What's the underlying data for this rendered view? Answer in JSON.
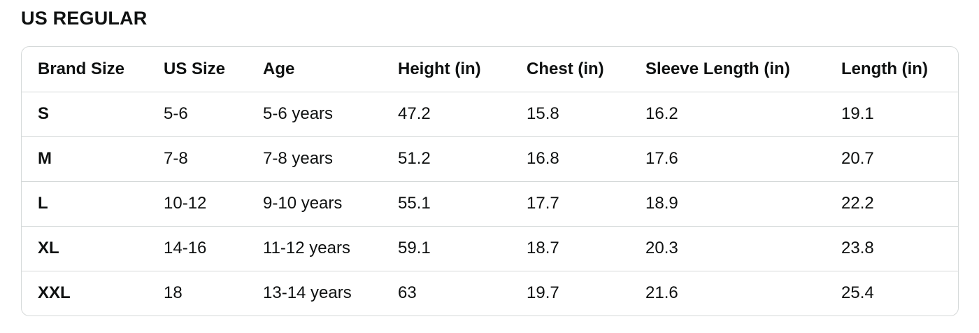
{
  "page": {
    "title": "US REGULAR"
  },
  "table": {
    "columns": [
      "Brand Size",
      "US Size",
      "Age",
      "Height (in)",
      "Chest (in)",
      "Sleeve Length (in)",
      "Length (in)"
    ],
    "rows": [
      [
        "S",
        "5-6",
        "5-6 years",
        "47.2",
        "15.8",
        "16.2",
        "19.1"
      ],
      [
        "M",
        "7-8",
        "7-8 years",
        "51.2",
        "16.8",
        "17.6",
        "20.7"
      ],
      [
        "L",
        "10-12",
        "9-10 years",
        "55.1",
        "17.7",
        "18.9",
        "22.2"
      ],
      [
        "XL",
        "14-16",
        "11-12 years",
        "59.1",
        "18.7",
        "20.3",
        "23.8"
      ],
      [
        "XXL",
        "18",
        "13-14 years",
        "63",
        "19.7",
        "21.6",
        "25.4"
      ]
    ]
  },
  "colors": {
    "text": "#0f1111",
    "border": "#d5d9d9",
    "background": "#ffffff"
  }
}
